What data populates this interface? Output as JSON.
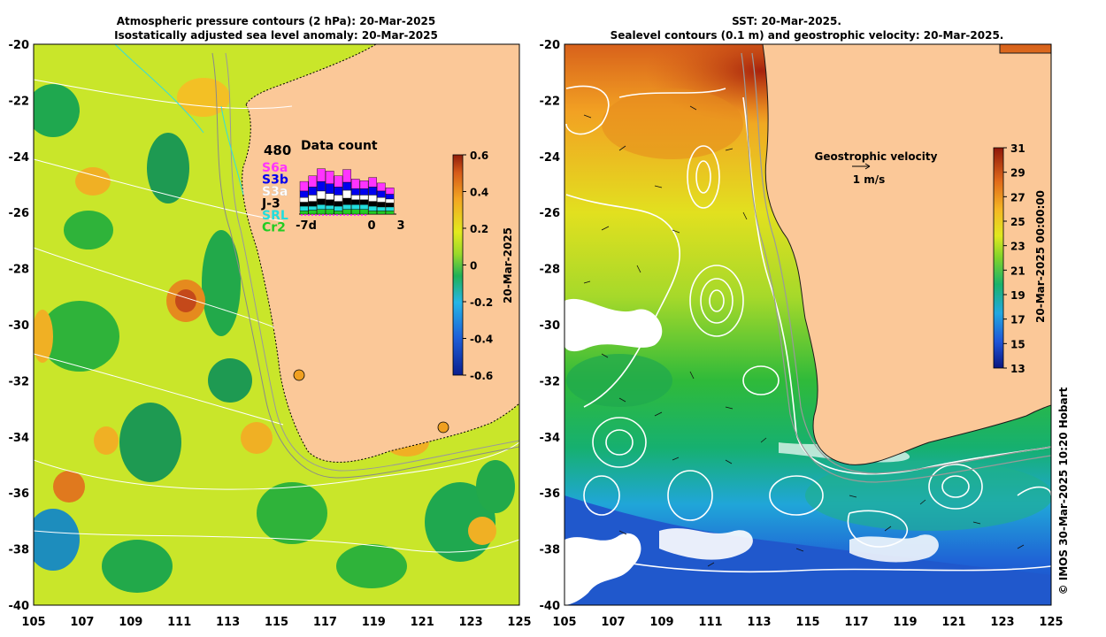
{
  "left_panel": {
    "title_line1": "Atmospheric pressure contours (2 hPa): 20-Mar-2025",
    "title_line2": "Isostatically adjusted sea level anomaly: 20-Mar-2025",
    "colorbar": {
      "label": "20-Mar-2025",
      "ticks": [
        "0.6",
        "0.4",
        "0.2",
        "0",
        "-0.2",
        "-0.4",
        "-0.6"
      ],
      "range": [
        -0.6,
        0.6
      ]
    },
    "inset": {
      "title": "Data count",
      "max_count": "480",
      "missions": [
        {
          "name": "S6a",
          "color": "#ff33ff"
        },
        {
          "name": "S3b",
          "color": "#0000ee"
        },
        {
          "name": "S3a",
          "color": "#ffffff"
        },
        {
          "name": "J-3",
          "color": "#000000"
        },
        {
          "name": "SRL",
          "color": "#22dddd"
        },
        {
          "name": "Cr2",
          "color": "#22cc22"
        }
      ],
      "x_ticks": [
        "-7d",
        "0",
        "3"
      ]
    }
  },
  "right_panel": {
    "title_line1": "SST: 20-Mar-2025.",
    "title_line2": "Sealevel contours (0.1 m) and geostrophic velocity: 20-Mar-2025.",
    "legend_title": "Geostrophic velocity",
    "legend_scale": "1 m/s",
    "colorbar": {
      "label": "20-Mar-2025 00:00:00",
      "ticks": [
        "31",
        "29",
        "27",
        "25",
        "23",
        "21",
        "19",
        "17",
        "15",
        "13"
      ],
      "range": [
        13,
        31
      ]
    }
  },
  "axes": {
    "lat_ticks": [
      "-20",
      "-22",
      "-24",
      "-26",
      "-28",
      "-30",
      "-32",
      "-34",
      "-36",
      "-38",
      "-40"
    ],
    "lon_ticks": [
      "105",
      "107",
      "109",
      "111",
      "113",
      "115",
      "117",
      "119",
      "121",
      "123",
      "125"
    ]
  },
  "credit": "© IMOS 30-Mar-2025 10:20 Hobart",
  "colors": {
    "land": "#fbc898",
    "frame": "#000000"
  }
}
